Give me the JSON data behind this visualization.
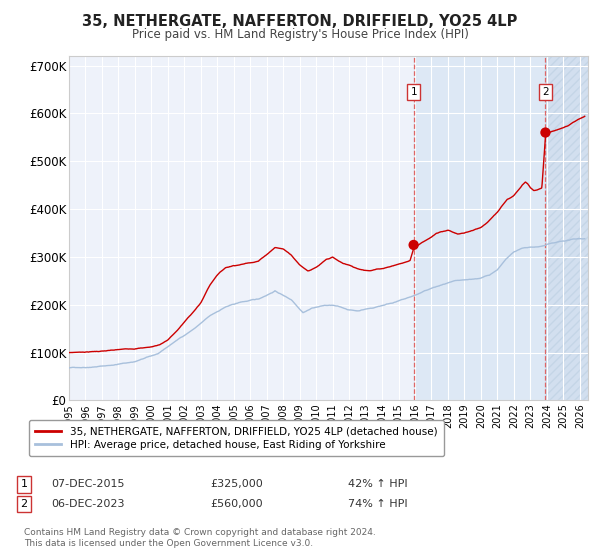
{
  "title": "35, NETHERGATE, NAFFERTON, DRIFFIELD, YO25 4LP",
  "subtitle": "Price paid vs. HM Land Registry's House Price Index (HPI)",
  "ylim": [
    0,
    720000
  ],
  "xlim_start": 1995,
  "xlim_end": 2026.5,
  "yticks": [
    0,
    100000,
    200000,
    300000,
    400000,
    500000,
    600000,
    700000
  ],
  "ytick_labels": [
    "£0",
    "£100K",
    "£200K",
    "£300K",
    "£400K",
    "£500K",
    "£600K",
    "£700K"
  ],
  "xtick_years": [
    1995,
    1996,
    1997,
    1998,
    1999,
    2000,
    2001,
    2002,
    2003,
    2004,
    2005,
    2006,
    2007,
    2008,
    2009,
    2010,
    2011,
    2012,
    2013,
    2014,
    2015,
    2016,
    2017,
    2018,
    2019,
    2020,
    2021,
    2022,
    2023,
    2024,
    2025,
    2026
  ],
  "hpi_color": "#a8c0dc",
  "price_color": "#cc0000",
  "bg_color": "#ffffff",
  "plot_bg_color": "#eef2fa",
  "grid_color": "#ffffff",
  "shade_color": "#dde8f5",
  "hatch_color": "#c8d8eb",
  "sale1_date": 2015.917,
  "sale1_price": 325000,
  "sale2_date": 2023.917,
  "sale2_price": 560000,
  "legend_label1": "35, NETHERGATE, NAFFERTON, DRIFFIELD, YO25 4LP (detached house)",
  "legend_label2": "HPI: Average price, detached house, East Riding of Yorkshire",
  "footnote3": "Contains HM Land Registry data © Crown copyright and database right 2024.",
  "footnote4": "This data is licensed under the Open Government Licence v3.0."
}
